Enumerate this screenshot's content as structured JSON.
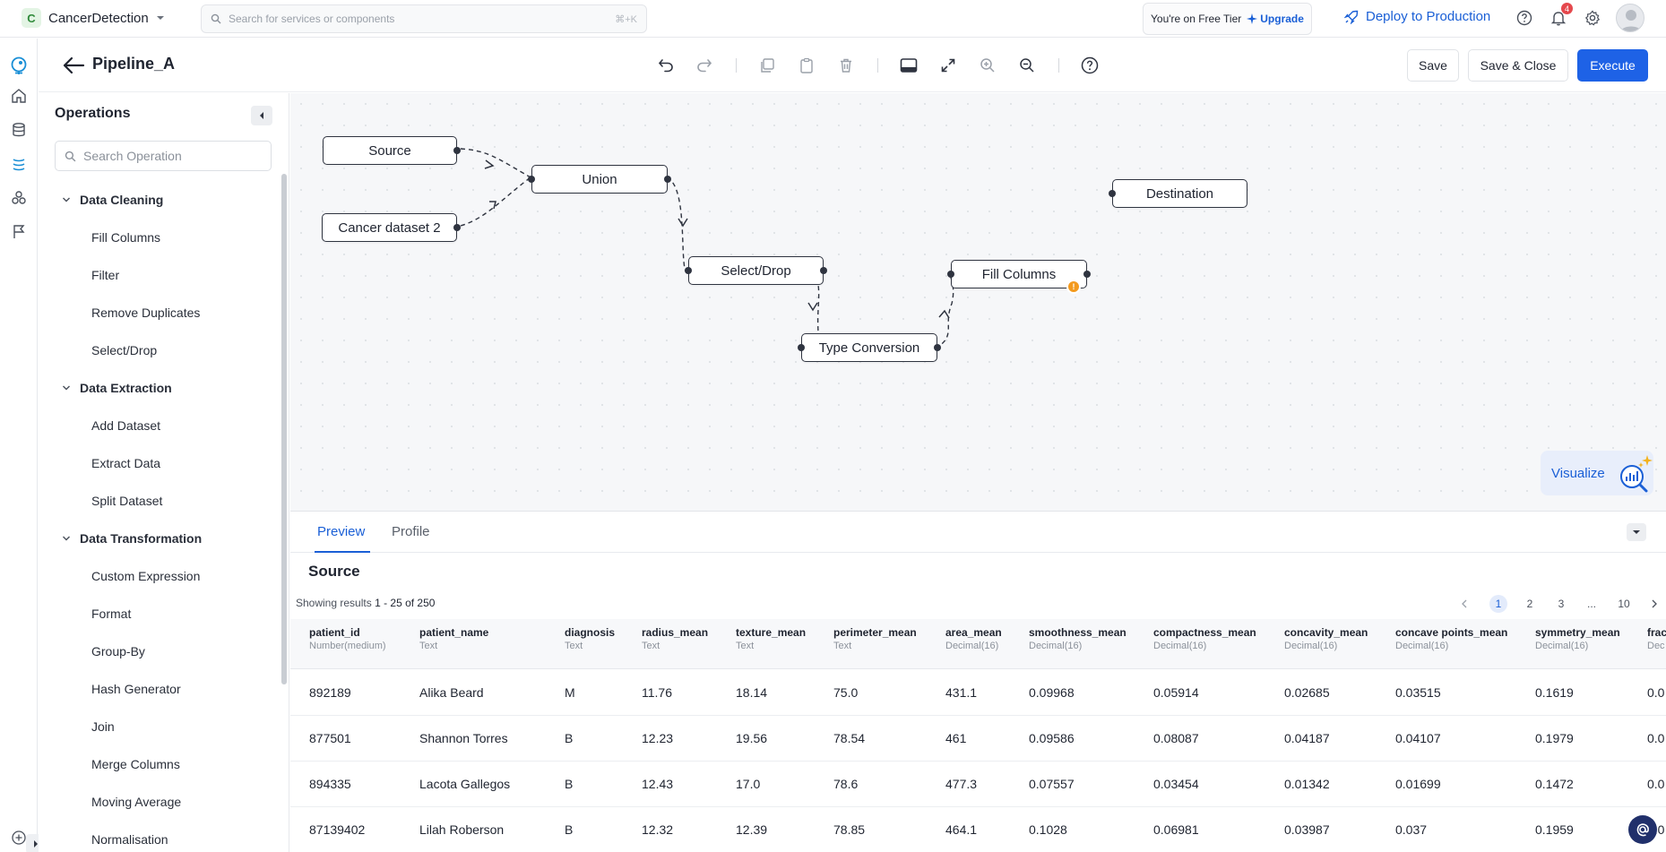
{
  "topbar": {
    "project_badge": "C",
    "project_name": "CancerDetection",
    "search_placeholder": "Search for services or components",
    "search_shortcut": "⌘+K",
    "tier_text": "You're on Free Tier",
    "upgrade_label": "Upgrade",
    "deploy_label": "Deploy to Production",
    "notification_count": "4"
  },
  "toolbar": {
    "title": "Pipeline_A",
    "save_label": "Save",
    "save_close_label": "Save & Close",
    "execute_label": "Execute"
  },
  "sidebar": {
    "title": "Operations",
    "search_placeholder": "Search Operation",
    "categories": [
      {
        "label": "Data Cleaning",
        "items": [
          "Fill Columns",
          "Filter",
          "Remove Duplicates",
          "Select/Drop"
        ]
      },
      {
        "label": "Data Extraction",
        "items": [
          "Add Dataset",
          "Extract Data",
          "Split Dataset"
        ]
      },
      {
        "label": "Data Transformation",
        "items": [
          "Custom Expression",
          "Format",
          "Group-By",
          "Hash Generator",
          "Join",
          "Merge Columns",
          "Moving Average",
          "Normalisation"
        ]
      }
    ]
  },
  "canvas": {
    "nodes": {
      "source": "Source",
      "cancer2": "Cancer dataset 2",
      "union": "Union",
      "select_drop": "Select/Drop",
      "type_conversion": "Type Conversion",
      "fill_columns": "Fill Columns",
      "destination": "Destination"
    },
    "visualize_label": "Visualize"
  },
  "panel": {
    "tabs": [
      "Preview",
      "Profile"
    ],
    "active_tab": "Preview",
    "title": "Source",
    "showing_prefix": "Showing results",
    "showing_range": "1 - 25 of 250",
    "pages": [
      "1",
      "2",
      "3",
      "...",
      "10"
    ],
    "current_page": "1",
    "columns": [
      {
        "name": "patient_id",
        "type": "Number(medium)"
      },
      {
        "name": "patient_name",
        "type": "Text"
      },
      {
        "name": "diagnosis",
        "type": "Text"
      },
      {
        "name": "radius_mean",
        "type": "Text"
      },
      {
        "name": "texture_mean",
        "type": "Text"
      },
      {
        "name": "perimeter_mean",
        "type": "Text"
      },
      {
        "name": "area_mean",
        "type": "Decimal(16)"
      },
      {
        "name": "smoothness_mean",
        "type": "Decimal(16)"
      },
      {
        "name": "compactness_mean",
        "type": "Decimal(16)"
      },
      {
        "name": "concavity_mean",
        "type": "Decimal(16)"
      },
      {
        "name": "concave points_mean",
        "type": "Decimal(16)"
      },
      {
        "name": "symmetry_mean",
        "type": "Decimal(16)"
      },
      {
        "name": "frac",
        "type": "Dec"
      }
    ],
    "rows": [
      [
        "892189",
        "Alika Beard",
        "M",
        "11.76",
        "18.14",
        "75.0",
        "431.1",
        "0.09968",
        "0.05914",
        "0.02685",
        "0.03515",
        "0.1619",
        "0.0"
      ],
      [
        "877501",
        "Shannon Torres",
        "B",
        "12.23",
        "19.56",
        "78.54",
        "461",
        "0.09586",
        "0.08087",
        "0.04187",
        "0.04107",
        "0.1979",
        "0.0"
      ],
      [
        "894335",
        "Lacota Gallegos",
        "B",
        "12.43",
        "17.0",
        "78.6",
        "477.3",
        "0.07557",
        "0.03454",
        "0.01342",
        "0.01699",
        "0.1472",
        "0.0"
      ],
      [
        "87139402",
        "Lilah Roberson",
        "B",
        "12.32",
        "12.39",
        "78.85",
        "464.1",
        "0.1028",
        "0.06981",
        "0.03987",
        "0.037",
        "0.1959",
        "0.0"
      ]
    ]
  },
  "colors": {
    "accent": "#1e62e6",
    "warning": "#f39a1e",
    "notification": "#e5484d"
  }
}
